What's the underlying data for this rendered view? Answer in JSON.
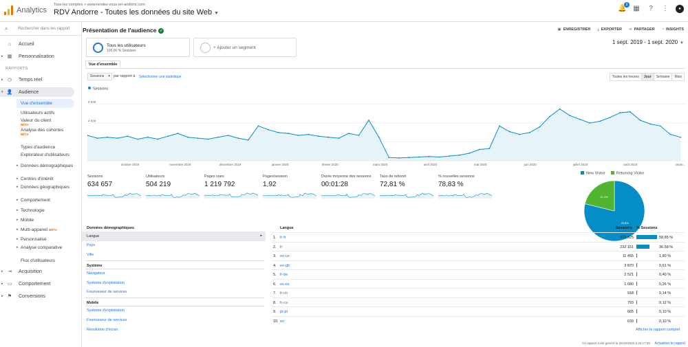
{
  "header": {
    "app_name": "Analytics",
    "account_crumb": "Tous les comptes > www.rendez-vous-en-andorre.com",
    "view_title": "RDV Andorre - Toutes les données du site Web",
    "notification_count": "1"
  },
  "sidebar": {
    "search_placeholder": "Rechercher dans les rapport",
    "items_top": [
      {
        "label": "Accueil",
        "icon": "home-icon"
      },
      {
        "label": "Personnalisation",
        "icon": "grid-icon"
      }
    ],
    "section_reports": "RAPPORTS",
    "items_reports": [
      {
        "label": "Temps réel",
        "icon": "clock-icon"
      },
      {
        "label": "Audience",
        "icon": "person-icon"
      }
    ],
    "audience_sub": [
      "Vue d'ensemble",
      "Utilisateurs actifs",
      "Valeur du client",
      "Analyse des cohortes",
      "Types d'audience",
      "Explorateur d'utilisateurs",
      "Données démographiques",
      "Centres d'intérêt",
      "Données géographiques",
      "Comportement",
      "Technologie",
      "Mobile",
      "Multi-appareil",
      "Personnalisé",
      "Analyse comparative",
      "Flux d'utilisateurs"
    ],
    "beta_label": "BÊTA",
    "items_bottom": [
      {
        "label": "Acquisition",
        "icon": "acquisition-icon"
      },
      {
        "label": "Comportement",
        "icon": "behavior-icon"
      },
      {
        "label": "Conversions",
        "icon": "flag-icon"
      }
    ]
  },
  "page": {
    "title": "Présentation de l'audience",
    "actions": [
      "ENREGISTRER",
      "EXPORTER",
      "PARTAGER",
      "INSIGHTS"
    ],
    "segment_name": "Tous les utilisateurs",
    "segment_sub": "100,00 % Sessions",
    "add_segment": "+ Ajouter un segment",
    "date_range": "1 sept. 2019 - 1 sept. 2020",
    "tab": "Vue d'ensemble",
    "metric_select": "Sessions",
    "vs_text": "par rapport à",
    "select_metric_link": "Sélectionner une statistique",
    "granularity": [
      "Toutes les heures",
      "Jour",
      "Semaine",
      "Mois"
    ],
    "granularity_active": "Jour"
  },
  "chart_data": {
    "type": "line",
    "series": [
      {
        "name": "Sessions",
        "color": "#058dc7"
      }
    ],
    "yticks": [
      "6 000",
      "4 000",
      "2 000"
    ],
    "ylim": [
      0,
      7000
    ],
    "xticks": [
      "octobre 2019",
      "novembre 2019",
      "décembre 2019",
      "janvier 2020",
      "février 2020",
      "mars 2020",
      "avril 2020",
      "mai 2020",
      "juin 2020",
      "juillet 2020",
      "août 2020",
      "septe..."
    ],
    "weekly_values": [
      2700,
      2400,
      2500,
      2400,
      2600,
      2300,
      2500,
      2300,
      2600,
      2900,
      2500,
      2400,
      2300,
      2500,
      2700,
      2400,
      2200,
      3700,
      3300,
      3000,
      2900,
      2700,
      2800,
      2600,
      2500,
      2400,
      2900,
      2700,
      4300,
      2500,
      350,
      300,
      350,
      400,
      450,
      400,
      500,
      600,
      800,
      1200,
      1300,
      3700,
      3100,
      2800,
      3000,
      3600,
      4700,
      5500,
      4800,
      4400,
      4000,
      4200,
      4600,
      5100,
      5200,
      4300,
      3900,
      3700,
      2800,
      2500
    ]
  },
  "metrics": [
    {
      "label": "Sessions",
      "value": "634 657"
    },
    {
      "label": "Utilisateurs",
      "value": "504 219"
    },
    {
      "label": "Pages vues",
      "value": "1 219 792"
    },
    {
      "label": "Pages/session",
      "value": "1,92"
    },
    {
      "label": "Durée moyenne des sessions",
      "value": "00:01:28"
    },
    {
      "label": "Taux de rebond",
      "value": "72,81 %"
    },
    {
      "label": "% nouvelles sessions",
      "value": "78,83 %"
    }
  ],
  "pie": {
    "legend": [
      {
        "label": "New Visitor",
        "color": "#058dc7",
        "value": 78.8
      },
      {
        "label": "Returning Visitor",
        "color": "#50b432",
        "value": 21.2
      }
    ],
    "labels": [
      "78,8%",
      "21,2%"
    ]
  },
  "demographics": {
    "section1": "Données démographiques",
    "links1": [
      "Langue",
      "Pays",
      "Ville"
    ],
    "section2": "Système",
    "links2": [
      "Navigateur",
      "Système d'exploitation",
      "Fournisseur de services"
    ],
    "section3": "Mobile",
    "links3": [
      "Système d'exploitation",
      "Fournisseur de services",
      "Résolution d'écran"
    ]
  },
  "language_table": {
    "col_language": "Langue",
    "col_sessions": "Sessions",
    "col_pct": "% Sessions",
    "rows": [
      {
        "n": "1.",
        "lang": "fr-fr",
        "sessions": "373 525",
        "pct": "58,85 %",
        "share": 58.85
      },
      {
        "n": "2.",
        "lang": "fr",
        "sessions": "232 151",
        "pct": "36,58 %",
        "share": 36.58
      },
      {
        "n": "3.",
        "lang": "en-us",
        "sessions": "11 455",
        "pct": "1,80 %",
        "share": 1.8
      },
      {
        "n": "4.",
        "lang": "en-gb",
        "sessions": "3 870",
        "pct": "0,61 %",
        "share": 0.61
      },
      {
        "n": "5.",
        "lang": "fr-be",
        "sessions": "2 521",
        "pct": "0,40 %",
        "share": 0.4
      },
      {
        "n": "6.",
        "lang": "es-es",
        "sessions": "1 680",
        "pct": "0,26 %",
        "share": 0.26
      },
      {
        "n": "7.",
        "lang": "fr-ch",
        "sessions": "918",
        "pct": "0,14 %",
        "share": 0.14
      },
      {
        "n": "8.",
        "lang": "fr-ca",
        "sessions": "793",
        "pct": "0,12 %",
        "share": 0.12
      },
      {
        "n": "9.",
        "lang": "pt-pt",
        "sessions": "665",
        "pct": "0,10 %",
        "share": 0.1
      },
      {
        "n": "10.",
        "lang": "en",
        "sessions": "633",
        "pct": "0,10 %",
        "share": 0.1
      }
    ],
    "full_report": "Afficher le rapport complet"
  },
  "footer": {
    "generated": "Ce rapport a été généré le 25/10/2020 à 20:17:28 -",
    "refresh": "Actualiser le rapport"
  }
}
